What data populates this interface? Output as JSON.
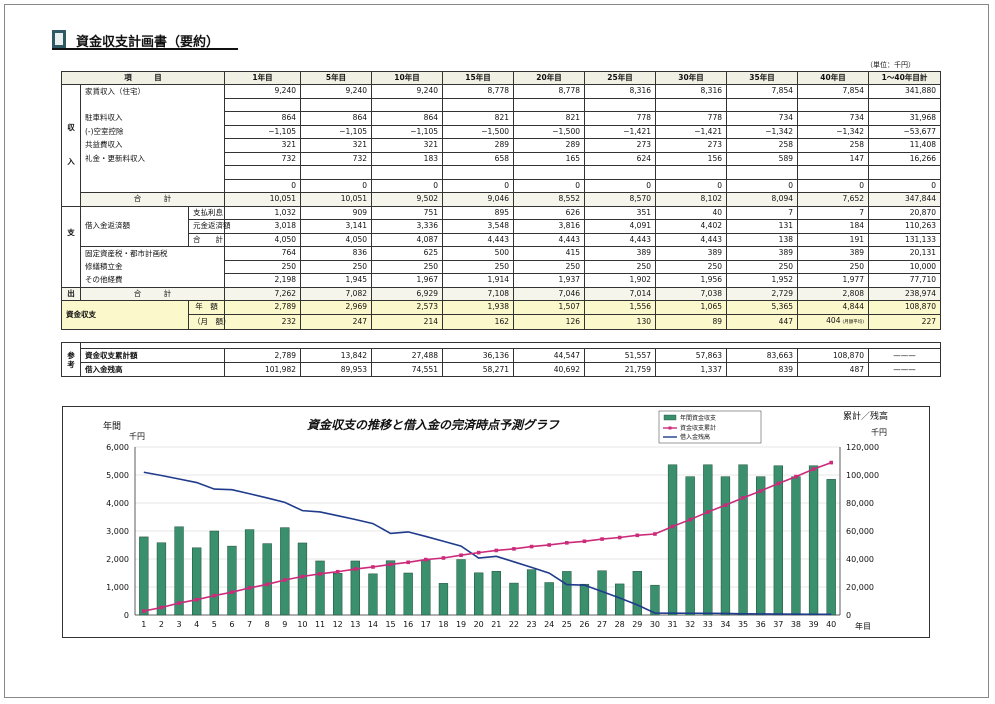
{
  "title": "資金収支計画書（要約）",
  "unit": "（単位：千円）",
  "header": [
    "項　　　目",
    "1年目",
    "5年目",
    "10年目",
    "15年目",
    "20年目",
    "25年目",
    "30年目",
    "35年目",
    "40年目",
    "1～40年目計"
  ],
  "sections": {
    "income": "収\n入",
    "expense_a": "支",
    "expense_b": "出",
    "ref": "参\n考"
  },
  "income_rows": [
    {
      "label": "家賃収入（住宅）",
      "values": [
        "9,240",
        "9,240",
        "9,240",
        "8,778",
        "8,778",
        "8,316",
        "8,316",
        "7,854",
        "7,854",
        "341,880"
      ]
    },
    {
      "label": "",
      "values": [
        "",
        "",
        "",
        "",
        "",
        "",
        "",
        "",
        "",
        ""
      ]
    },
    {
      "label": "駐車料収入",
      "values": [
        "864",
        "864",
        "864",
        "821",
        "821",
        "778",
        "778",
        "734",
        "734",
        "31,968"
      ]
    },
    {
      "label": "(-)空室控除",
      "values": [
        "−1,105",
        "−1,105",
        "−1,105",
        "−1,500",
        "−1,500",
        "−1,421",
        "−1,421",
        "−1,342",
        "−1,342",
        "−53,677"
      ]
    },
    {
      "label": "共益費収入",
      "values": [
        "321",
        "321",
        "321",
        "289",
        "289",
        "273",
        "273",
        "258",
        "258",
        "11,408"
      ]
    },
    {
      "label": "礼金・更新料収入",
      "values": [
        "732",
        "732",
        "183",
        "658",
        "165",
        "624",
        "156",
        "589",
        "147",
        "16,266"
      ]
    },
    {
      "label": "",
      "values": [
        "",
        "",
        "",
        "",
        "",
        "",
        "",
        "",
        "",
        ""
      ]
    },
    {
      "label": "",
      "values": [
        "0",
        "0",
        "0",
        "0",
        "0",
        "0",
        "0",
        "0",
        "0",
        "0"
      ]
    }
  ],
  "income_total": {
    "label": "合　　　計",
    "values": [
      "10,051",
      "10,051",
      "9,502",
      "9,046",
      "8,552",
      "8,570",
      "8,102",
      "8,094",
      "7,652",
      "347,844"
    ]
  },
  "loan": {
    "group_label": "借入金返済額",
    "rows": [
      {
        "label": "支払利息",
        "values": [
          "1,032",
          "909",
          "751",
          "895",
          "626",
          "351",
          "40",
          "7",
          "7",
          "20,870"
        ]
      },
      {
        "label": "元金返済額",
        "values": [
          "3,018",
          "3,141",
          "3,336",
          "3,548",
          "3,816",
          "4,091",
          "4,402",
          "131",
          "184",
          "110,263"
        ]
      },
      {
        "label": "合　　計",
        "values": [
          "4,050",
          "4,050",
          "4,087",
          "4,443",
          "4,443",
          "4,443",
          "4,443",
          "138",
          "191",
          "131,133"
        ]
      }
    ]
  },
  "expense_rows": [
    {
      "label": "固定資産税・都市計画税",
      "values": [
        "764",
        "836",
        "625",
        "500",
        "415",
        "389",
        "389",
        "389",
        "389",
        "20,131"
      ]
    },
    {
      "label": "修繕積立金",
      "values": [
        "250",
        "250",
        "250",
        "250",
        "250",
        "250",
        "250",
        "250",
        "250",
        "10,000"
      ]
    },
    {
      "label": "その他経費",
      "values": [
        "2,198",
        "1,945",
        "1,967",
        "1,914",
        "1,937",
        "1,902",
        "1,956",
        "1,952",
        "1,977",
        "77,710"
      ]
    }
  ],
  "expense_total": {
    "label": "合　　　計",
    "values": [
      "7,262",
      "7,082",
      "6,929",
      "7,108",
      "7,046",
      "7,014",
      "7,038",
      "2,729",
      "2,808",
      "238,974"
    ]
  },
  "cash": {
    "label": "資金収支",
    "annual_label": "年　額",
    "monthly_label": "（月　額）",
    "annual": [
      "2,789",
      "2,969",
      "2,573",
      "1,938",
      "1,507",
      "1,556",
      "1,065",
      "5,365",
      "4,844",
      "108,870"
    ],
    "monthly": [
      "232",
      "247",
      "214",
      "162",
      "126",
      "130",
      "89",
      "447",
      "404",
      "227"
    ],
    "monthly_note": "(月額平均)"
  },
  "ref_rows": [
    {
      "label": "資金収支累計額",
      "values": [
        "2,789",
        "13,842",
        "27,488",
        "36,136",
        "44,547",
        "51,557",
        "57,863",
        "83,663",
        "108,870",
        "———"
      ]
    },
    {
      "label": "借入金残高",
      "values": [
        "101,982",
        "89,953",
        "74,551",
        "58,271",
        "40,692",
        "21,759",
        "1,337",
        "839",
        "487",
        "———"
      ]
    }
  ],
  "chart_data": {
    "type": "bar",
    "title": "資金収支の推移と借入金の完済時点予測グラフ",
    "ylabel_left": "年間",
    "yunit_left": "千円",
    "ylabel_right": "累計／残高",
    "yunit_right": "千円",
    "xlabel": "年目",
    "ylim_left": [
      0,
      6000
    ],
    "ylim_right": [
      0,
      120000
    ],
    "yticks_left": [
      "0",
      "1,000",
      "2,000",
      "3,000",
      "4,000",
      "5,000",
      "6,000"
    ],
    "yticks_right": [
      "0",
      "20,000",
      "40,000",
      "60,000",
      "80,000",
      "100,000",
      "120,000"
    ],
    "x": [
      1,
      2,
      3,
      4,
      5,
      6,
      7,
      8,
      9,
      10,
      11,
      12,
      13,
      14,
      15,
      16,
      17,
      18,
      19,
      20,
      21,
      22,
      23,
      24,
      25,
      26,
      27,
      28,
      29,
      30,
      31,
      32,
      33,
      34,
      35,
      36,
      37,
      38,
      39,
      40
    ],
    "legend": [
      "年間資金収支",
      "資金収支累計",
      "借入金残高"
    ],
    "colors": {
      "bar": "#3a8f6d",
      "cumulative": "#cc2a7a",
      "loan": "#1f3b8c"
    },
    "annual": [
      2789,
      2580,
      3150,
      2400,
      3000,
      2460,
      3050,
      2550,
      3120,
      2573,
      1930,
      1490,
      1930,
      1470,
      1938,
      1500,
      1950,
      1130,
      1980,
      1507,
      1560,
      1140,
      1620,
      1160,
      1556,
      1100,
      1580,
      1110,
      1560,
      1065,
      5365,
      4940,
      5365,
      4940,
      5365,
      4940,
      5330,
      4940,
      5330,
      4844
    ],
    "cumulative": [
      2789,
      5369,
      8519,
      10919,
      13842,
      16302,
      19352,
      21902,
      25022,
      27488,
      29418,
      30908,
      32838,
      34308,
      36136,
      37636,
      39586,
      40716,
      42696,
      44547,
      46107,
      47247,
      48867,
      50027,
      51557,
      52657,
      54237,
      55347,
      56907,
      57863,
      63228,
      68168,
      73533,
      78473,
      83663,
      88603,
      93933,
      98873,
      104203,
      108870
    ],
    "loan": [
      101982,
      99640,
      97160,
      94600,
      89953,
      89500,
      86600,
      83600,
      80450,
      74551,
      73600,
      70950,
      68200,
      65300,
      58271,
      59350,
      56100,
      52700,
      49200,
      40692,
      41900,
      38000,
      34000,
      29900,
      21759,
      21300,
      16800,
      12100,
      7200,
      1337,
      1300,
      1250,
      1180,
      1100,
      839,
      800,
      700,
      600,
      540,
      487
    ]
  }
}
